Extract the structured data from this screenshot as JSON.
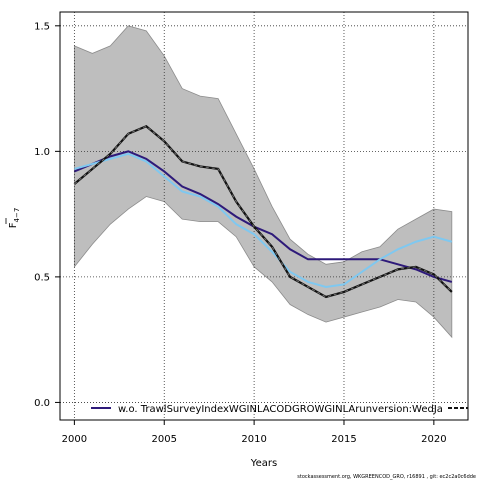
{
  "chart_data": {
    "type": "line",
    "xlabel": "Years",
    "ylabel_main": "F",
    "ylabel_sub": "4−7",
    "xlim": [
      1999.2,
      2021.9
    ],
    "ylim": [
      -0.07,
      1.555
    ],
    "x_ticks": [
      2000,
      2005,
      2010,
      2015,
      2020
    ],
    "y_ticks": [
      0.0,
      0.5,
      1.0,
      1.5
    ],
    "y_tick_labels": [
      "0.0",
      "0.5",
      "1.0",
      "1.5"
    ],
    "grid": true,
    "legend_position": "bottom",
    "legend_label": "w.o. TrawlSurveyIndexWGINLACODGROWGINLArunversion:WedJa",
    "x": [
      2000,
      2001,
      2002,
      2003,
      2004,
      2005,
      2006,
      2007,
      2008,
      2009,
      2010,
      2011,
      2012,
      2013,
      2014,
      2015,
      2016,
      2017,
      2018,
      2019,
      2020,
      2021
    ],
    "series": [
      {
        "role": "confidence-band-upper",
        "values": [
          1.42,
          1.39,
          1.42,
          1.5,
          1.48,
          1.38,
          1.25,
          1.22,
          1.21,
          1.07,
          0.93,
          0.78,
          0.65,
          0.59,
          0.55,
          0.56,
          0.6,
          0.62,
          0.69,
          0.73,
          0.77,
          0.76
        ]
      },
      {
        "role": "confidence-band-lower",
        "values": [
          0.54,
          0.63,
          0.71,
          0.77,
          0.82,
          0.8,
          0.73,
          0.72,
          0.72,
          0.66,
          0.54,
          0.48,
          0.39,
          0.35,
          0.32,
          0.34,
          0.36,
          0.38,
          0.41,
          0.4,
          0.34,
          0.26
        ]
      },
      {
        "role": "base-run",
        "color": "#2e1a7a",
        "values": [
          0.92,
          0.95,
          0.98,
          1.0,
          0.97,
          0.92,
          0.86,
          0.83,
          0.79,
          0.74,
          0.7,
          0.67,
          0.61,
          0.57,
          0.57,
          0.57,
          0.57,
          0.57,
          0.55,
          0.53,
          0.5,
          0.48
        ]
      },
      {
        "role": "retrospective-run",
        "color": "#7fc8f0",
        "values": [
          0.93,
          0.95,
          0.97,
          0.99,
          0.96,
          0.9,
          0.84,
          0.82,
          0.78,
          0.71,
          0.67,
          0.6,
          0.52,
          0.48,
          0.46,
          0.47,
          0.52,
          0.57,
          0.61,
          0.64,
          0.66,
          0.64
        ]
      },
      {
        "role": "leave-out-run",
        "color": "#111111",
        "values": [
          0.87,
          0.93,
          0.99,
          1.07,
          1.1,
          1.04,
          0.96,
          0.94,
          0.93,
          0.8,
          0.7,
          0.62,
          0.5,
          0.46,
          0.42,
          0.44,
          0.47,
          0.5,
          0.53,
          0.54,
          0.51,
          0.44
        ]
      }
    ],
    "colors": {
      "band": "#bebebe",
      "band_edge": "#8c8c8c",
      "grid": "#333333"
    }
  },
  "footnote": "stockassessment.org, WKGREENCOD_GRO, r16891 , git: ec2c2a0c6dde"
}
